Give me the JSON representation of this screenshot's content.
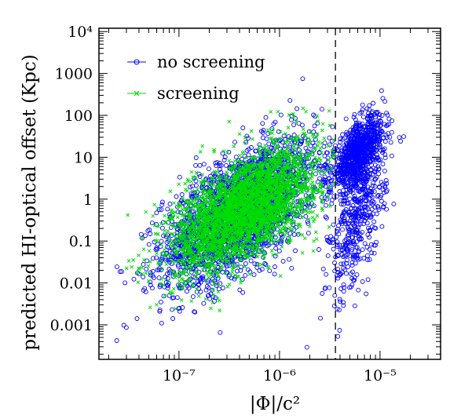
{
  "chart_data": {
    "type": "scatter",
    "title": "",
    "xlabel": "|Φ|/c²",
    "ylabel": "predicted HI-optical offset (Kpc)",
    "x_scale": "log",
    "y_scale": "log",
    "xlim": [
      1.6e-08,
      4e-05
    ],
    "ylim": [
      0.00015,
      12000
    ],
    "x_ticks": [
      {
        "value": 1e-07,
        "label": "10⁻⁷"
      },
      {
        "value": 1e-06,
        "label": "10⁻⁶"
      },
      {
        "value": 1e-05,
        "label": "10⁻⁵"
      }
    ],
    "y_ticks": [
      {
        "value": 0.001,
        "label": "0.001"
      },
      {
        "value": 0.01,
        "label": "0.01"
      },
      {
        "value": 0.1,
        "label": "0.1"
      },
      {
        "value": 1,
        "label": "1"
      },
      {
        "value": 10,
        "label": "10"
      },
      {
        "value": 100,
        "label": "100"
      },
      {
        "value": 1000,
        "label": "1000"
      },
      {
        "value": 10000,
        "label": "10⁴"
      }
    ],
    "threshold_line": {
      "x": 3.6e-06,
      "style": "dashed"
    },
    "legend_position": "top-left",
    "series": [
      {
        "name": "no screening",
        "marker": "open-circle",
        "color": "#0000ff",
        "clusters": [
          {
            "x_center": 4e-07,
            "y_center": 0.5,
            "x_spread_dex": 0.38,
            "y_spread_dex": 0.85,
            "count": 2600,
            "x_max": 3.6e-06
          },
          {
            "x_center": 6e-06,
            "y_center": 12,
            "x_spread_dex": 0.13,
            "y_spread_dex": 0.45,
            "count": 900
          },
          {
            "x_center": 6e-06,
            "y_center": 0.3,
            "x_spread_dex": 0.14,
            "y_spread_dex": 0.9,
            "count": 450
          }
        ]
      },
      {
        "name": "screening",
        "marker": "cross",
        "color": "#00dd00",
        "clusters": [
          {
            "x_center": 4.5e-07,
            "y_center": 0.6,
            "x_spread_dex": 0.36,
            "y_spread_dex": 0.75,
            "count": 3200,
            "x_max": 3.6e-06
          }
        ]
      }
    ]
  }
}
